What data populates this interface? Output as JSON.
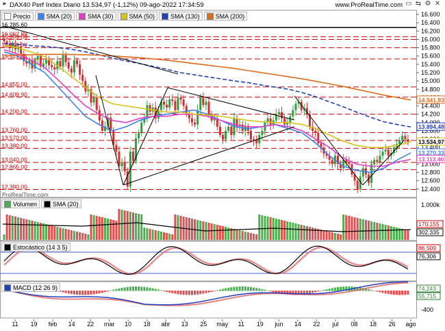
{
  "header": {
    "title": "DAX40 Perf Index Diario 13.534,97 (-1,12%) 09-ago-2022 17:34:59",
    "site": "www.ProRealTime.com",
    "watermark": "ProRealTime.com"
  },
  "legend_price": [
    {
      "label": "Precio",
      "color": "#ffffff"
    },
    {
      "label": "SMA (20)",
      "color": "#3b82f6"
    },
    {
      "label": "SMA (30)",
      "color": "#e040c8"
    },
    {
      "label": "SMA (50)",
      "color": "#d6c21c"
    },
    {
      "label": "SMA (130)",
      "color": "#1f3fbf"
    },
    {
      "label": "SMA (200)",
      "color": "#e06a1a"
    }
  ],
  "legend_volume": [
    {
      "label": "Volumen",
      "color": "#4caf50"
    },
    {
      "label": "SMA (20)",
      "color": "#000000"
    }
  ],
  "legend_stoch": [
    {
      "label": "Estocástico (14 3 5)",
      "color": "#000000"
    }
  ],
  "legend_macd": [
    {
      "label": "MACD (12 26 9)",
      "color": "#1f3fbf"
    }
  ],
  "chart_data": [
    {
      "type": "candlestick",
      "title": "DAX40 Perf Index Diario",
      "ylim": [
        12200,
        16700
      ],
      "y_ticks": [
        "16.600",
        "16.400",
        "16.200",
        "16.000",
        "15.800",
        "15.600",
        "15.400",
        "15.200",
        "15.000",
        "14.800",
        "14.600",
        "14.400",
        "14.200",
        "14.000",
        "13.800",
        "13.600",
        "13.400",
        "13.200",
        "13.000",
        "12.800",
        "12.600",
        "12.400"
      ],
      "y_tick_values": [
        16600,
        16400,
        16200,
        16000,
        15800,
        15600,
        15400,
        15200,
        15000,
        14800,
        14600,
        14400,
        14200,
        14000,
        13800,
        13600,
        13400,
        13200,
        13000,
        12800,
        12600,
        12400
      ],
      "x_labels": [
        "11",
        "19",
        "feb",
        "14",
        "22",
        "mar",
        "10",
        "18",
        "abr",
        "13",
        "25",
        "may",
        "11",
        "19",
        "jun",
        "14",
        "22",
        "jul",
        "08",
        "18",
        "26",
        "ago"
      ],
      "level_labels": [
        {
          "text": "16.285,60",
          "value": 16285,
          "color": "#000000"
        },
        {
          "text": "16.062,89",
          "value": 16063,
          "color": "#cc0000"
        },
        {
          "text": "15.999,00",
          "value": 16000,
          "color": "#cc0000"
        },
        {
          "text": "15.799,09",
          "value": 15799,
          "color": "#cc0000"
        },
        {
          "text": "15.529,05",
          "value": 15529,
          "color": "#cc0000"
        },
        {
          "text": "14.855,00",
          "value": 14855,
          "color": "#cc0000"
        },
        {
          "text": "14.609,90",
          "value": 14610,
          "color": "#cc0000"
        },
        {
          "text": "14.200,00",
          "value": 14200,
          "color": "#cc0000"
        },
        {
          "text": "13.760,00",
          "value": 13760,
          "color": "#cc0000"
        },
        {
          "text": "13.570,00",
          "value": 13570,
          "color": "#cc0000"
        },
        {
          "text": "13.380,00",
          "value": 13380,
          "color": "#cc0000"
        },
        {
          "text": "13.040,00",
          "value": 13040,
          "color": "#cc0000"
        },
        {
          "text": "12.865,00",
          "value": 12865,
          "color": "#cc0000"
        },
        {
          "text": "12.390,00",
          "value": 12390,
          "color": "#cc0000"
        }
      ],
      "right_badges": [
        {
          "text": "14.541,93",
          "value": 14542,
          "color": "#e06a1a"
        },
        {
          "text": "13.894,48",
          "value": 13894,
          "color": "#1f3fbf"
        },
        {
          "text": "13.534,97",
          "value": 13535,
          "color": "#d6c21c"
        },
        {
          "text": "13.270,33",
          "value": 13270,
          "color": "#3b82f6"
        },
        {
          "text": "13.113,40",
          "value": 13113,
          "color": "#e040c8"
        }
      ],
      "close_series": [
        15950,
        15900,
        15800,
        15870,
        15760,
        15820,
        15650,
        15480,
        15420,
        15500,
        15300,
        15510,
        15600,
        15350,
        15420,
        15510,
        15380,
        15330,
        15280,
        15480,
        15350,
        15620,
        15450,
        15300,
        15200,
        15500,
        15400,
        15150,
        15000,
        14750,
        14800,
        14480,
        14600,
        14300,
        14050,
        13800,
        13910,
        14120,
        13820,
        13460,
        13300,
        12950,
        13050,
        12830,
        12460,
        13300,
        13080,
        13620,
        13760,
        14000,
        14130,
        14420,
        14260,
        14360,
        14100,
        14300,
        14500,
        14430,
        14360,
        14560,
        14520,
        14300,
        14600,
        14550,
        14400,
        14200,
        14100,
        14000,
        13950,
        14300,
        14600,
        14420,
        14500,
        14200,
        14050,
        14100,
        13900,
        13700,
        13600,
        13800,
        13900,
        13700,
        14100,
        13900,
        13950,
        13800,
        13900,
        13800,
        13600,
        13580,
        13500,
        13700,
        13800,
        14000,
        14100,
        13950,
        14050,
        14200,
        14250,
        14100,
        13950,
        14000,
        14150,
        14300,
        14450,
        14500,
        14300,
        14350,
        14200,
        13900,
        13800,
        13750,
        13500,
        13400,
        13250,
        13200,
        13100,
        13000,
        13200,
        13000,
        12900,
        13100,
        13050,
        13000,
        12750,
        12600,
        12400,
        12700,
        12900,
        12750,
        12550,
        13000,
        13100,
        13050,
        13200,
        13300,
        13350,
        13200,
        13270,
        13400,
        13480,
        13570,
        13680,
        13600,
        13535
      ],
      "series": [
        {
          "name": "SMA (20)",
          "color": "#3b82f6",
          "values": [
            15700,
            15600,
            15400,
            15200,
            14850,
            14500,
            14150,
            13950,
            13800,
            13900,
            14050,
            14150,
            14200,
            14250,
            14300,
            14200,
            14050,
            13900,
            13850,
            13900,
            13950,
            13850,
            13750,
            13500,
            13200,
            12950,
            12850,
            12800,
            12900,
            13100,
            13270
          ]
        },
        {
          "name": "SMA (30)",
          "color": "#e040c8",
          "values": [
            15750,
            15650,
            15500,
            15320,
            15020,
            14700,
            14400,
            14200,
            14050,
            14000,
            14100,
            14150,
            14150,
            14200,
            14200,
            14150,
            14050,
            13950,
            13900,
            13900,
            13950,
            13900,
            13800,
            13600,
            13400,
            13150,
            13000,
            12950,
            12950,
            13050,
            13113
          ]
        },
        {
          "name": "SMA (50)",
          "color": "#d6c21c",
          "values": [
            15850,
            15800,
            15700,
            15580,
            15350,
            15100,
            14850,
            14600,
            14450,
            14400,
            14350,
            14300,
            14250,
            14250,
            14200,
            14180,
            14150,
            14100,
            14050,
            14020,
            14000,
            14000,
            13950,
            13850,
            13700,
            13550,
            13450,
            13400,
            13400,
            13450,
            13535
          ]
        },
        {
          "name": "SMA (130)",
          "color": "#1f3fbf",
          "values": [
            15900,
            15880,
            15850,
            15830,
            15800,
            15760,
            15700,
            15630,
            15550,
            15480,
            15420,
            15350,
            15280,
            15200,
            15150,
            15100,
            15050,
            15000,
            14960,
            14900,
            14850,
            14800,
            14720,
            14620,
            14500,
            14380,
            14250,
            14130,
            14020,
            13950,
            13894
          ]
        },
        {
          "name": "SMA (200)",
          "color": "#e06a1a",
          "values": [
            15600,
            15620,
            15630,
            15640,
            15640,
            15635,
            15630,
            15620,
            15600,
            15580,
            15560,
            15530,
            15500,
            15460,
            15420,
            15380,
            15340,
            15300,
            15250,
            15200,
            15150,
            15100,
            15050,
            14990,
            14930,
            14870,
            14800,
            14730,
            14660,
            14600,
            14542
          ]
        }
      ]
    },
    {
      "type": "bar",
      "title": "Volumen",
      "y_ticks": [
        "1.000k"
      ],
      "value_labels": [
        {
          "text": "170.155",
          "color": "#cc0000"
        },
        {
          "text": "302.335",
          "color": "#000000"
        }
      ],
      "sma_line": "SMA (20)"
    },
    {
      "type": "line",
      "title": "Estocástico (14 3 5)",
      "value_labels": [
        {
          "text": "86,509",
          "color": "#cc0000"
        },
        {
          "text": "76,306",
          "color": "#000000"
        }
      ],
      "levels": [
        80,
        20
      ]
    },
    {
      "type": "line",
      "title": "MACD (12 26 9)",
      "y_ticks": [
        "-400"
      ],
      "value_labels": [
        {
          "text": "74,243",
          "color": "#2e7d32"
        },
        {
          "text": "55,715",
          "color": "#2e7d32"
        }
      ]
    }
  ]
}
